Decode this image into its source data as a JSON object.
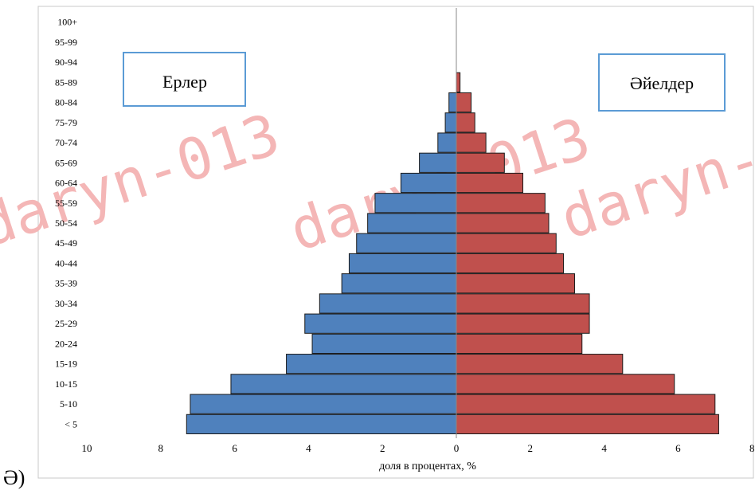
{
  "figure": {
    "panel_label": "Ә)",
    "watermark": "daryn-013"
  },
  "colors": {
    "male": "#4f81bd",
    "female": "#c0504d",
    "bar_edge": "#1a1a1a",
    "legend_border": "#5b9bd5",
    "watermark": "#f4b6b6",
    "frame": "#c8c8c8"
  },
  "chart_data": {
    "type": "bar",
    "orientation": "horizontal",
    "categories": [
      "< 5",
      "5-10",
      "10-15",
      "15-19",
      "20-24",
      "25-29",
      "30-34",
      "35-39",
      "40-44",
      "45-49",
      "50-54",
      "55-59",
      "60-64",
      "65-69",
      "70-74",
      "75-79",
      "80-84",
      "85-89",
      "90-94",
      "95-99",
      "100+"
    ],
    "series": [
      {
        "name": "Ерлер",
        "values": [
          7.3,
          7.2,
          6.1,
          4.6,
          3.9,
          4.1,
          3.7,
          3.1,
          2.9,
          2.7,
          2.4,
          2.2,
          1.5,
          1.0,
          0.5,
          0.3,
          0.2,
          0.0,
          0.0,
          0.0,
          0.0
        ]
      },
      {
        "name": "Әйелдер",
        "values": [
          7.1,
          7.0,
          5.9,
          4.5,
          3.4,
          3.6,
          3.6,
          3.2,
          2.9,
          2.7,
          2.5,
          2.4,
          1.8,
          1.3,
          0.8,
          0.5,
          0.4,
          0.1,
          0.0,
          0.0,
          0.0
        ]
      }
    ],
    "xlabel": "доля в процентах, %",
    "xlim": [
      -10,
      8
    ],
    "x_ticks": [
      -10,
      -8,
      -6,
      -4,
      -2,
      0,
      2,
      4,
      6,
      8
    ],
    "x_tick_labels": [
      "10",
      "8",
      "6",
      "4",
      "2",
      "0",
      "2",
      "4",
      "6",
      "8"
    ],
    "grid": false,
    "legend": [
      {
        "text": "Ерлер",
        "placement": "top-left"
      },
      {
        "text": "Әйелдер",
        "placement": "top-right"
      }
    ]
  }
}
